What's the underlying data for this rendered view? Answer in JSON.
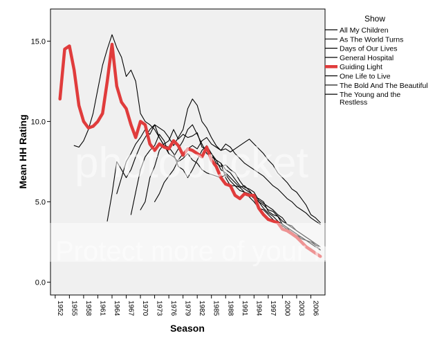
{
  "chart_data": {
    "type": "line",
    "xlabel": "Season",
    "ylabel": "Mean HH Rating",
    "legend_title": "Show",
    "legend_position": "right",
    "ylim": [
      -0.8,
      17.0
    ],
    "xlim": [
      1951,
      2009
    ],
    "y_ticks": [
      0.0,
      5.0,
      10.0,
      15.0
    ],
    "y_tick_labels": [
      "0.0",
      "5.0",
      "10.0",
      "15.0"
    ],
    "x_ticks": [
      1952,
      1955,
      1958,
      1961,
      1964,
      1967,
      1970,
      1973,
      1976,
      1979,
      1982,
      1985,
      1988,
      1991,
      1994,
      1997,
      2000,
      2003,
      2006
    ],
    "x_tick_labels": [
      "1952",
      "1955",
      "1958",
      "1961",
      "1964",
      "1967",
      "1970",
      "1973",
      "1976",
      "1979",
      "1982",
      "1985",
      "1988",
      "1991",
      "1994",
      "1997",
      "2000",
      "2003",
      "2006"
    ],
    "watermark_top": "photobucket",
    "watermark_bottom": "Protect more of your memories",
    "series": [
      {
        "name": "All My Children",
        "color": "#000000",
        "highlight": false,
        "x": [
          1970,
          1971,
          1972,
          1973,
          1974,
          1975,
          1976,
          1977,
          1978,
          1979,
          1980,
          1981,
          1982,
          1983,
          1984,
          1985,
          1986,
          1987,
          1988,
          1989,
          1990,
          1991,
          1992,
          1993,
          1994,
          1995,
          1996,
          1997,
          1998,
          1999,
          2000,
          2001,
          2002,
          2003,
          2004,
          2005,
          2006,
          2007,
          2008
        ],
        "values": [
          4.5,
          5.0,
          6.5,
          7.2,
          8.2,
          8.6,
          8.8,
          9.5,
          8.9,
          9.2,
          9.0,
          9.1,
          9.3,
          8.4,
          8.3,
          8.0,
          7.4,
          7.2,
          7.3,
          7.0,
          6.8,
          6.3,
          5.9,
          5.8,
          5.6,
          5.1,
          4.9,
          4.7,
          4.5,
          4.2,
          4.0,
          3.6,
          3.4,
          3.2,
          3.0,
          2.8,
          2.6,
          2.4,
          2.2
        ]
      },
      {
        "name": "As The World Turns",
        "color": "#000000",
        "highlight": false,
        "x": [
          1956,
          1957,
          1958,
          1959,
          1960,
          1961,
          1962,
          1963,
          1964,
          1965,
          1966,
          1967,
          1968,
          1969,
          1970,
          1971,
          1972,
          1973,
          1974,
          1975,
          1976,
          1977,
          1978,
          1979,
          1980,
          1981,
          1982,
          1983,
          1984,
          1985,
          1986,
          1987,
          1988,
          1989,
          1990,
          1991,
          1992,
          1993,
          1994,
          1995,
          1996,
          1997,
          1998,
          1999,
          2000,
          2001,
          2002,
          2003,
          2004,
          2005,
          2006,
          2007,
          2008
        ],
        "values": [
          8.5,
          8.4,
          8.8,
          9.5,
          10.5,
          12.0,
          13.5,
          14.5,
          15.4,
          14.6,
          14.0,
          12.8,
          13.2,
          12.5,
          10.5,
          10.0,
          9.8,
          9.5,
          9.0,
          8.5,
          8.0,
          7.8,
          7.5,
          7.7,
          8.0,
          7.6,
          7.4,
          7.0,
          6.8,
          6.7,
          6.6,
          6.5,
          6.7,
          6.3,
          6.0,
          5.9,
          5.6,
          5.3,
          5.0,
          4.6,
          4.5,
          4.2,
          3.9,
          3.7,
          3.5,
          3.3,
          3.1,
          2.9,
          2.8,
          2.6,
          2.4,
          2.2,
          2.0
        ]
      },
      {
        "name": "Days of Our Lives",
        "color": "#000000",
        "highlight": false,
        "x": [
          1965,
          1966,
          1967,
          1968,
          1969,
          1970,
          1971,
          1972,
          1973,
          1974,
          1975,
          1976,
          1977,
          1978,
          1979,
          1980,
          1981,
          1982,
          1983,
          1984,
          1985,
          1986,
          1987,
          1988,
          1989,
          1990,
          1991,
          1992,
          1993,
          1994,
          1995,
          1996,
          1997,
          1998,
          1999,
          2000,
          2001,
          2002,
          2003,
          2004,
          2005,
          2006,
          2007,
          2008
        ],
        "values": [
          5.5,
          6.5,
          7.5,
          8.0,
          8.6,
          9.0,
          9.5,
          9.2,
          9.8,
          9.0,
          8.5,
          8.4,
          8.0,
          7.2,
          7.0,
          6.5,
          7.0,
          7.6,
          8.2,
          8.5,
          8.0,
          7.6,
          7.0,
          6.8,
          6.5,
          6.2,
          5.9,
          6.0,
          5.7,
          5.3,
          5.2,
          5.0,
          4.4,
          4.2,
          4.1,
          3.6,
          3.4,
          3.0,
          2.9,
          2.7,
          2.6,
          2.5,
          2.3,
          2.2
        ]
      },
      {
        "name": "General Hospital",
        "color": "#000000",
        "highlight": false,
        "x": [
          1963,
          1964,
          1965,
          1966,
          1967,
          1968,
          1969,
          1970,
          1971,
          1972,
          1973,
          1974,
          1975,
          1976,
          1977,
          1978,
          1979,
          1980,
          1981,
          1982,
          1983,
          1984,
          1985,
          1986,
          1987,
          1988,
          1989,
          1990,
          1991,
          1992,
          1993,
          1994,
          1995,
          1996,
          1997,
          1998,
          1999,
          2000,
          2001,
          2002,
          2003,
          2004,
          2005,
          2006,
          2007,
          2008
        ],
        "values": [
          3.8,
          5.5,
          7.5,
          7.0,
          6.5,
          7.0,
          7.8,
          8.5,
          9.0,
          9.5,
          9.8,
          9.6,
          9.4,
          9.0,
          8.5,
          9.0,
          9.5,
          10.8,
          11.4,
          11.0,
          10.0,
          9.6,
          9.0,
          8.5,
          8.2,
          8.6,
          8.4,
          8.0,
          7.7,
          7.4,
          7.2,
          7.0,
          6.8,
          6.6,
          6.3,
          6.0,
          5.8,
          5.5,
          5.2,
          5.0,
          4.7,
          4.5,
          4.3,
          4.0,
          3.8,
          3.6
        ]
      },
      {
        "name": "Guiding Light",
        "color": "#e03c3c",
        "highlight": true,
        "x": [
          1953,
          1954,
          1955,
          1956,
          1957,
          1958,
          1959,
          1960,
          1961,
          1962,
          1963,
          1964,
          1965,
          1966,
          1967,
          1968,
          1969,
          1970,
          1971,
          1972,
          1973,
          1974,
          1975,
          1976,
          1977,
          1978,
          1979,
          1980,
          1981,
          1982,
          1983,
          1984,
          1985,
          1986,
          1987,
          1988,
          1989,
          1990,
          1991,
          1992,
          1993,
          1994,
          1995,
          1996,
          1997,
          1998,
          1999,
          2000,
          2001,
          2002,
          2003,
          2004,
          2005,
          2006,
          2007,
          2008
        ],
        "values": [
          11.4,
          14.5,
          14.7,
          13.2,
          11.0,
          10.0,
          9.6,
          9.7,
          10.0,
          10.5,
          12.5,
          14.8,
          12.2,
          11.2,
          10.8,
          9.8,
          9.0,
          10.0,
          9.8,
          8.6,
          8.2,
          8.6,
          8.4,
          8.3,
          8.8,
          8.5,
          7.9,
          8.3,
          8.2,
          8.0,
          7.8,
          8.4,
          7.6,
          7.2,
          6.5,
          6.1,
          6.0,
          5.4,
          5.2,
          5.5,
          5.4,
          5.4,
          4.6,
          4.2,
          3.9,
          3.8,
          3.7,
          3.3,
          3.2,
          3.0,
          2.8,
          2.5,
          2.2,
          2.0,
          1.8,
          1.6
        ]
      },
      {
        "name": "One Life to Live",
        "color": "#000000",
        "highlight": false,
        "x": [
          1968,
          1969,
          1970,
          1971,
          1972,
          1973,
          1974,
          1975,
          1976,
          1977,
          1978,
          1979,
          1980,
          1981,
          1982,
          1983,
          1984,
          1985,
          1986,
          1987,
          1988,
          1989,
          1990,
          1991,
          1992,
          1993,
          1994,
          1995,
          1996,
          1997,
          1998,
          1999,
          2000,
          2001,
          2002,
          2003,
          2004,
          2005,
          2006,
          2007,
          2008
        ],
        "values": [
          4.2,
          5.6,
          7.0,
          7.8,
          8.2,
          8.5,
          9.2,
          8.8,
          8.0,
          7.8,
          8.3,
          8.8,
          9.5,
          9.8,
          9.2,
          8.6,
          8.0,
          7.8,
          7.6,
          7.4,
          7.0,
          6.8,
          6.4,
          6.0,
          5.8,
          5.6,
          5.4,
          5.0,
          4.6,
          4.3,
          4.1,
          3.8,
          3.6,
          3.4,
          3.2,
          3.0,
          2.8,
          2.6,
          2.4,
          2.2,
          2.0
        ]
      },
      {
        "name": "The Bold And The Beautiful",
        "color": "#000000",
        "highlight": false,
        "x": [
          1987,
          1988,
          1989,
          1990,
          1991,
          1992,
          1993,
          1994,
          1995,
          1996,
          1997,
          1998,
          1999,
          2000,
          2001,
          2002,
          2003,
          2004,
          2005,
          2006,
          2007,
          2008
        ],
        "values": [
          7.4,
          6.5,
          6.0,
          6.0,
          5.7,
          5.6,
          5.5,
          5.2,
          5.0,
          4.8,
          4.5,
          4.4,
          4.1,
          3.8,
          3.6,
          3.5,
          3.2,
          3.0,
          2.8,
          2.6,
          2.3,
          2.0
        ]
      },
      {
        "name": "The Young and the Restless",
        "color": "#000000",
        "highlight": false,
        "x": [
          1973,
          1974,
          1975,
          1976,
          1977,
          1978,
          1979,
          1980,
          1981,
          1982,
          1983,
          1984,
          1985,
          1986,
          1987,
          1988,
          1989,
          1990,
          1991,
          1992,
          1993,
          1994,
          1995,
          1996,
          1997,
          1998,
          1999,
          2000,
          2001,
          2002,
          2003,
          2004,
          2005,
          2006,
          2007,
          2008
        ],
        "values": [
          5.0,
          5.5,
          6.2,
          6.6,
          7.0,
          7.6,
          8.0,
          8.3,
          8.5,
          8.3,
          8.8,
          9.0,
          8.6,
          8.4,
          8.2,
          8.3,
          8.1,
          8.3,
          8.5,
          8.7,
          8.9,
          8.6,
          8.3,
          8.0,
          7.6,
          7.3,
          6.8,
          6.5,
          6.2,
          5.8,
          5.6,
          5.2,
          4.8,
          4.2,
          4.0,
          3.7
        ]
      }
    ]
  }
}
